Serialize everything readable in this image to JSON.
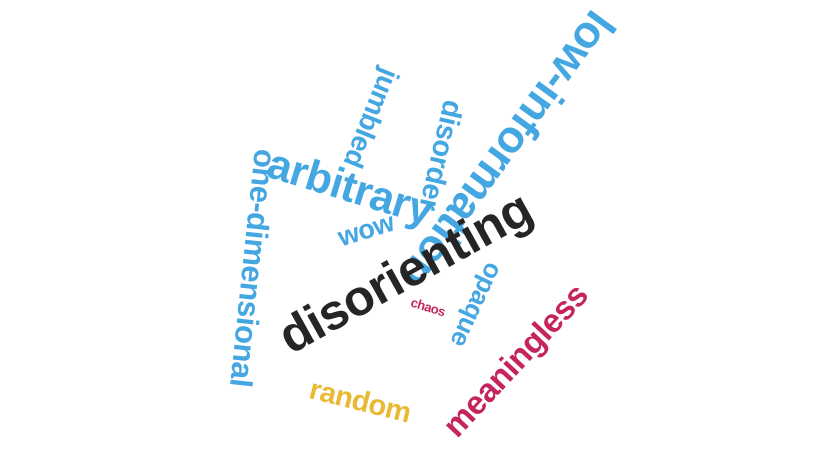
{
  "words": {
    "disorienting": "disorienting",
    "low_information": "low-information",
    "arbitrary": "arbitrary",
    "one_dimensional": "one-dimensional",
    "meaningless": "meaningless",
    "disorder": "disorder",
    "jumbled": "jumbled",
    "opaque": "opaque",
    "random": "random",
    "wow": "wow",
    "chaos": "chaos"
  },
  "colors": {
    "disorienting": "#252525",
    "low_information": "#45a7e2",
    "arbitrary": "#45a7e2",
    "one_dimensional": "#45a7e2",
    "meaningless": "#c5245e",
    "disorder": "#45a7e2",
    "jumbled": "#45a7e2",
    "opaque": "#45a7e2",
    "random": "#e9b934",
    "wow": "#45a7e2",
    "chaos": "#c5245e"
  }
}
